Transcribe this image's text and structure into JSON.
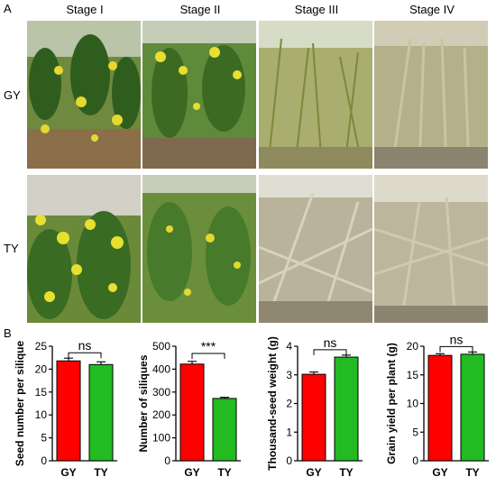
{
  "panel_a": {
    "letter": "A",
    "stages": [
      "Stage I",
      "Stage II",
      "Stage III",
      "Stage IV"
    ],
    "rows": [
      "GY",
      "TY"
    ]
  },
  "panel_b": {
    "letter": "B"
  },
  "chart_data": [
    {
      "type": "bar",
      "categories": [
        "GY",
        "TY"
      ],
      "values": [
        21.8,
        21.0
      ],
      "errors": [
        0.6,
        0.6
      ],
      "ylabel": "Seed number per silique",
      "ylim": [
        0,
        25
      ],
      "yticks": [
        "0",
        "5",
        "10",
        "15",
        "20",
        "25"
      ],
      "significance": "ns",
      "colors": [
        "#ff0000",
        "#22bb22"
      ]
    },
    {
      "type": "bar",
      "categories": [
        "GY",
        "TY"
      ],
      "values": [
        422,
        272
      ],
      "errors": [
        12,
        5
      ],
      "ylabel": "Number of siliques",
      "ylim": [
        0,
        500
      ],
      "yticks": [
        "0",
        "100",
        "200",
        "300",
        "400",
        "500"
      ],
      "significance": "***",
      "colors": [
        "#ff0000",
        "#22bb22"
      ]
    },
    {
      "type": "bar",
      "categories": [
        "GY",
        "TY"
      ],
      "values": [
        3.02,
        3.62
      ],
      "errors": [
        0.08,
        0.07
      ],
      "ylabel": "Thousand-seed weight (g)",
      "ylim": [
        0,
        4
      ],
      "yticks": [
        "0",
        "1",
        "2",
        "3",
        "4"
      ],
      "significance": "ns",
      "colors": [
        "#ff0000",
        "#22bb22"
      ]
    },
    {
      "type": "bar",
      "categories": [
        "GY",
        "TY"
      ],
      "values": [
        18.4,
        18.6
      ],
      "errors": [
        0.3,
        0.4
      ],
      "ylabel": "Grain yield per plant (g)",
      "ylim": [
        0,
        20
      ],
      "yticks": [
        "0",
        "5",
        "10",
        "15",
        "20"
      ],
      "significance": "ns",
      "colors": [
        "#ff0000",
        "#22bb22"
      ]
    }
  ]
}
